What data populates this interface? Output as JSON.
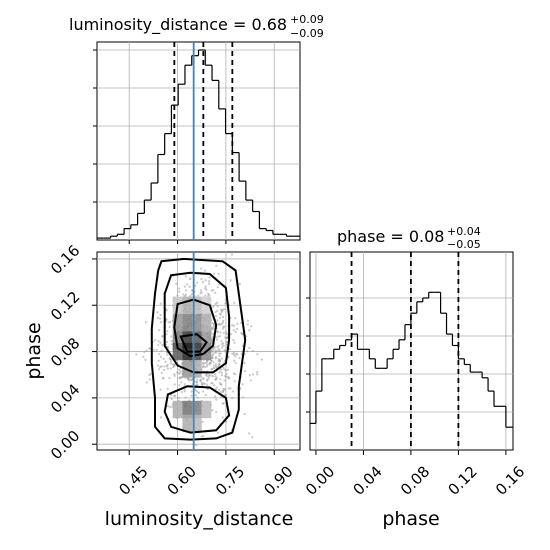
{
  "chart_data": [
    {
      "type": "histogram",
      "panel": "luminosity_distance marginal",
      "title": {
        "prefix": "luminosity_distance = 0.68",
        "sup": "+0.09",
        "sub": "−0.09"
      },
      "xlim": [
        0.35,
        0.98
      ],
      "grid": true,
      "bin_edges": [
        0.35,
        0.371,
        0.392,
        0.413,
        0.434,
        0.455,
        0.476,
        0.497,
        0.518,
        0.539,
        0.56,
        0.581,
        0.602,
        0.623,
        0.644,
        0.665,
        0.686,
        0.707,
        0.728,
        0.749,
        0.77,
        0.791,
        0.812,
        0.833,
        0.854,
        0.875,
        0.896,
        0.917,
        0.938,
        0.959,
        0.98
      ],
      "density": [
        0.01,
        0.01,
        0.02,
        0.03,
        0.06,
        0.08,
        0.14,
        0.21,
        0.3,
        0.45,
        0.56,
        0.71,
        0.82,
        0.92,
        0.97,
        1.0,
        0.92,
        0.84,
        0.69,
        0.56,
        0.46,
        0.31,
        0.21,
        0.15,
        0.06,
        0.05,
        0.03,
        0.03,
        0.02,
        0.02
      ],
      "quantiles": [
        0.59,
        0.68,
        0.77
      ],
      "truth": 0.65
    },
    {
      "type": "heatmap",
      "panel": "2D density",
      "xlabel": "luminosity_distance",
      "ylabel": "phase",
      "xlim": [
        0.35,
        0.98
      ],
      "ylim": [
        -0.005,
        0.166
      ],
      "xticks": [
        "0.45",
        "0.60",
        "0.75",
        "0.90"
      ],
      "xtick_values": [
        0.45,
        0.6,
        0.75,
        0.9
      ],
      "yticks": [
        "0.00",
        "0.04",
        "0.08",
        "0.12",
        "0.16"
      ],
      "ytick_values": [
        0.0,
        0.04,
        0.08,
        0.12,
        0.16
      ],
      "truth_x": 0.65,
      "contour_levels": [
        "1-sigma",
        "2-sigma",
        "3-sigma"
      ]
    },
    {
      "type": "histogram",
      "panel": "phase marginal",
      "title": {
        "prefix": "phase = 0.08",
        "sup": "+0.04",
        "sub": "−0.05"
      },
      "xlabel": "phase",
      "xlim": [
        -0.005,
        0.166
      ],
      "xticks": [
        "0.00",
        "0.04",
        "0.08",
        "0.12",
        "0.16"
      ],
      "xtick_values": [
        0.0,
        0.04,
        0.08,
        0.12,
        0.16
      ],
      "grid": true,
      "bin_edges": [
        -0.005,
        0.0,
        0.005,
        0.01,
        0.015,
        0.02,
        0.025,
        0.03,
        0.035,
        0.04,
        0.045,
        0.05,
        0.055,
        0.06,
        0.065,
        0.07,
        0.075,
        0.08,
        0.085,
        0.09,
        0.095,
        0.1,
        0.105,
        0.11,
        0.115,
        0.12,
        0.125,
        0.13,
        0.135,
        0.14,
        0.145,
        0.15,
        0.155,
        0.16,
        0.166
      ],
      "density": [
        0.14,
        0.31,
        0.48,
        0.48,
        0.53,
        0.55,
        0.58,
        0.61,
        0.53,
        0.53,
        0.48,
        0.43,
        0.43,
        0.48,
        0.53,
        0.58,
        0.66,
        0.72,
        0.78,
        0.8,
        0.83,
        0.83,
        0.72,
        0.61,
        0.55,
        0.48,
        0.45,
        0.41,
        0.41,
        0.38,
        0.31,
        0.23,
        0.23,
        0.12
      ],
      "quantiles": [
        0.03,
        0.08,
        0.12
      ]
    }
  ]
}
